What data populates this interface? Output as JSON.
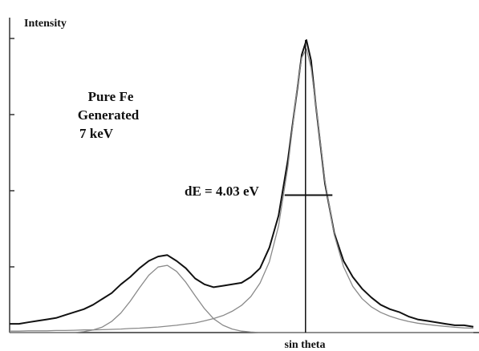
{
  "chart_data": {
    "type": "line",
    "x_label": "sin theta",
    "y_label": "Intensity",
    "annotations": [
      "Pure Fe",
      "Generated",
      "7 keV"
    ],
    "width_label": "dE = 4.03 eV",
    "xlim": [
      0,
      100
    ],
    "ylim": [
      0,
      100
    ],
    "x": [
      0,
      2,
      4,
      6,
      8,
      10,
      12,
      14,
      16,
      18,
      20,
      22,
      24,
      26,
      28,
      30,
      32,
      34,
      36,
      38,
      40,
      42,
      44,
      46,
      48,
      50,
      52,
      54,
      56,
      58,
      60,
      62,
      63,
      64,
      65,
      66,
      68,
      70,
      72,
      74,
      76,
      78,
      80,
      82,
      84,
      86,
      88,
      90,
      92,
      94,
      96,
      98,
      100
    ],
    "series": [
      {
        "color": "#111111",
        "values": [
          3,
          3,
          3.5,
          4,
          4.5,
          5,
          6,
          7,
          8,
          9.5,
          11.5,
          13.5,
          16.5,
          19,
          22,
          24.5,
          26,
          26.5,
          24.5,
          22,
          18.5,
          16.5,
          15.5,
          16,
          16.5,
          17,
          19,
          22,
          29,
          40,
          59,
          83,
          95,
          100,
          93,
          78,
          51,
          34,
          24.5,
          19,
          15,
          12,
          9.5,
          8,
          7,
          5.5,
          4.5,
          4,
          3.5,
          3,
          2.5,
          2.5,
          2
        ]
      },
      {
        "color": "#8a8a8a",
        "values": [
          0,
          0,
          0,
          0,
          0,
          0,
          0,
          0,
          0.3,
          0.9,
          1.9,
          3.8,
          6.7,
          10.7,
          15.3,
          19.6,
          22.4,
          23,
          20.9,
          17.2,
          12.6,
          8.2,
          4.7,
          2.5,
          1.2,
          0.5,
          0.2,
          0,
          0,
          0,
          0,
          0,
          0,
          0,
          0,
          0,
          0,
          0,
          0,
          0,
          0,
          0,
          0,
          0,
          0,
          0,
          0,
          0,
          0,
          0,
          0,
          0,
          0
        ]
      },
      {
        "color": "#8a8a8a",
        "values": [
          0.5,
          0.5,
          0.6,
          0.6,
          0.6,
          0.7,
          0.7,
          0.8,
          0.9,
          0.9,
          1,
          1.1,
          1.2,
          1.4,
          1.5,
          1.7,
          1.9,
          2.2,
          2.5,
          2.9,
          3.3,
          4,
          4.8,
          5.8,
          7.3,
          9.3,
          12.3,
          16.9,
          24.2,
          36.5,
          56.7,
          83.6,
          94,
          97,
          90.6,
          78.2,
          51.9,
          33.4,
          22.5,
          15.8,
          11.6,
          8.8,
          6.9,
          5.6,
          4.6,
          3.8,
          3.2,
          2.8,
          2.4,
          2.1,
          1.8,
          1.6,
          1.5
        ]
      }
    ],
    "peak_x": 63.8,
    "half_max": 47,
    "half_width_x": [
      59.3,
      69.6
    ]
  }
}
